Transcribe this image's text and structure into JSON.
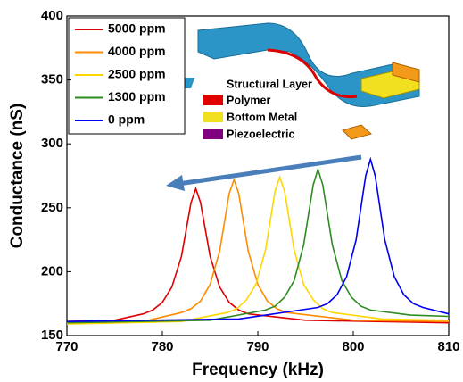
{
  "chart_data": {
    "type": "line",
    "xlabel": "Frequency (kHz)",
    "ylabel": "Conductance (nS)",
    "xlim": [
      770,
      810
    ],
    "xticks": [
      770,
      780,
      790,
      800,
      810
    ],
    "ylim": [
      150,
      400
    ],
    "yticks": [
      150,
      200,
      250,
      300,
      350,
      400
    ],
    "legend": "upper left",
    "series": [
      {
        "name": "5000 ppm",
        "color": "#e00000",
        "x": [
          770,
          775,
          778,
          779,
          780,
          781,
          782,
          783,
          783.5,
          784,
          785,
          786,
          787,
          788,
          789,
          795,
          810
        ],
        "values": [
          161,
          162,
          167,
          170,
          176,
          188,
          212,
          254,
          265,
          254,
          212,
          188,
          176,
          170,
          167,
          162,
          160
        ]
      },
      {
        "name": "4000 ppm",
        "color": "#ff8c00",
        "x": [
          770,
          778,
          782,
          783,
          784,
          785,
          786,
          787,
          787.5,
          788,
          789,
          790,
          791,
          792,
          793,
          800,
          810
        ],
        "values": [
          160,
          161,
          168,
          171,
          177,
          190,
          216,
          261,
          272,
          261,
          216,
          190,
          177,
          171,
          168,
          162,
          161
        ]
      },
      {
        "name": "2500 ppm",
        "color": "#ffd700",
        "x": [
          770,
          782,
          786.8,
          787.8,
          788.8,
          789.8,
          790.8,
          791.8,
          792.3,
          792.8,
          793.8,
          794.8,
          795.8,
          796.8,
          797.8,
          803,
          810
        ],
        "values": [
          159,
          161,
          168,
          171,
          178,
          190,
          217,
          263,
          274,
          263,
          217,
          190,
          178,
          171,
          168,
          163,
          162
        ]
      },
      {
        "name": "1300 ppm",
        "color": "#2e8b22",
        "x": [
          770,
          785,
          790.8,
          791.8,
          792.8,
          793.8,
          794.8,
          795.8,
          796.3,
          796.8,
          797.8,
          798.8,
          799.8,
          800.8,
          801.8,
          806,
          810
        ],
        "values": [
          160,
          162,
          170,
          173,
          180,
          193,
          221,
          268,
          280,
          268,
          221,
          193,
          180,
          173,
          170,
          166,
          165
        ]
      },
      {
        "name": "0 ppm",
        "color": "#0000ee",
        "x": [
          770,
          788,
          796.3,
          797.3,
          798.3,
          799.3,
          800.3,
          801.3,
          801.8,
          802.3,
          803.3,
          804.3,
          805.3,
          806.3,
          807.3,
          810
        ],
        "values": [
          161,
          163,
          172,
          175,
          182,
          196,
          225,
          275,
          288,
          275,
          225,
          196,
          182,
          175,
          172,
          167
        ]
      }
    ],
    "inset_labels": [
      "Structural Layer",
      "Polymer",
      "Bottom Metal",
      "Piezoelectric"
    ]
  }
}
